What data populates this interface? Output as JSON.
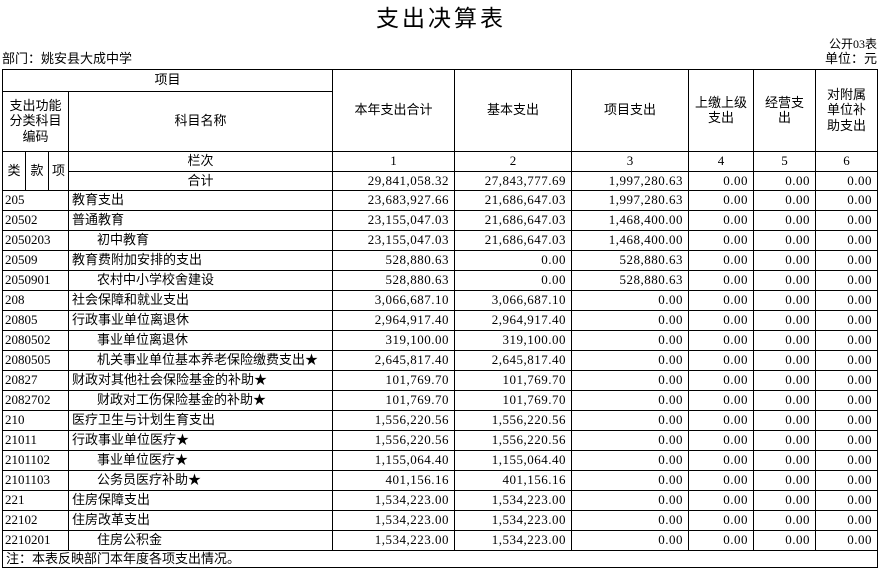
{
  "page": {
    "title": "支出决算表",
    "form_no": "公开03表",
    "unit": "单位：元",
    "department": "部门：姚安县大成中学",
    "note": "注：本表反映部门本年度各项支出情况。"
  },
  "table": {
    "header": {
      "project": "项目",
      "code_header": "支出功能分类科目编码",
      "subject_name": "科目名称",
      "code_cols": [
        "类",
        "款",
        "项"
      ],
      "lanci": "栏次",
      "value_cols": [
        "本年支出合计",
        "基本支出",
        "项目支出",
        "上缴上级支出",
        "经营支出",
        "对附属单位补助支出"
      ],
      "col_nums": [
        "1",
        "2",
        "3",
        "4",
        "5",
        "6"
      ]
    },
    "total": {
      "label": "合计",
      "values": [
        "29,841,058.32",
        "27,843,777.69",
        "1,997,280.63",
        "0.00",
        "0.00",
        "0.00"
      ]
    },
    "rows": [
      {
        "code": "205",
        "name": "教育支出",
        "indent": false,
        "values": [
          "23,683,927.66",
          "21,686,647.03",
          "1,997,280.63",
          "0.00",
          "0.00",
          "0.00"
        ]
      },
      {
        "code": "20502",
        "name": "普通教育",
        "indent": false,
        "values": [
          "23,155,047.03",
          "21,686,647.03",
          "1,468,400.00",
          "0.00",
          "0.00",
          "0.00"
        ]
      },
      {
        "code": "2050203",
        "name": "初中教育",
        "indent": true,
        "values": [
          "23,155,047.03",
          "21,686,647.03",
          "1,468,400.00",
          "0.00",
          "0.00",
          "0.00"
        ]
      },
      {
        "code": "20509",
        "name": "教育费附加安排的支出",
        "indent": false,
        "values": [
          "528,880.63",
          "0.00",
          "528,880.63",
          "0.00",
          "0.00",
          "0.00"
        ]
      },
      {
        "code": "2050901",
        "name": "农村中小学校舍建设",
        "indent": true,
        "values": [
          "528,880.63",
          "0.00",
          "528,880.63",
          "0.00",
          "0.00",
          "0.00"
        ]
      },
      {
        "code": "208",
        "name": "社会保障和就业支出",
        "indent": false,
        "values": [
          "3,066,687.10",
          "3,066,687.10",
          "0.00",
          "0.00",
          "0.00",
          "0.00"
        ]
      },
      {
        "code": "20805",
        "name": "行政事业单位离退休",
        "indent": false,
        "values": [
          "2,964,917.40",
          "2,964,917.40",
          "0.00",
          "0.00",
          "0.00",
          "0.00"
        ]
      },
      {
        "code": "2080502",
        "name": "事业单位离退休",
        "indent": true,
        "values": [
          "319,100.00",
          "319,100.00",
          "0.00",
          "0.00",
          "0.00",
          "0.00"
        ]
      },
      {
        "code": "2080505",
        "name": "机关事业单位基本养老保险缴费支出★",
        "indent": true,
        "values": [
          "2,645,817.40",
          "2,645,817.40",
          "0.00",
          "0.00",
          "0.00",
          "0.00"
        ]
      },
      {
        "code": "20827",
        "name": "财政对其他社会保险基金的补助★",
        "indent": false,
        "values": [
          "101,769.70",
          "101,769.70",
          "0.00",
          "0.00",
          "0.00",
          "0.00"
        ]
      },
      {
        "code": "2082702",
        "name": "财政对工伤保险基金的补助★",
        "indent": true,
        "values": [
          "101,769.70",
          "101,769.70",
          "0.00",
          "0.00",
          "0.00",
          "0.00"
        ]
      },
      {
        "code": "210",
        "name": "医疗卫生与计划生育支出",
        "indent": false,
        "values": [
          "1,556,220.56",
          "1,556,220.56",
          "0.00",
          "0.00",
          "0.00",
          "0.00"
        ]
      },
      {
        "code": "21011",
        "name": "行政事业单位医疗★",
        "indent": false,
        "values": [
          "1,556,220.56",
          "1,556,220.56",
          "0.00",
          "0.00",
          "0.00",
          "0.00"
        ]
      },
      {
        "code": "2101102",
        "name": "事业单位医疗★",
        "indent": true,
        "values": [
          "1,155,064.40",
          "1,155,064.40",
          "0.00",
          "0.00",
          "0.00",
          "0.00"
        ]
      },
      {
        "code": "2101103",
        "name": "公务员医疗补助★",
        "indent": true,
        "values": [
          "401,156.16",
          "401,156.16",
          "0.00",
          "0.00",
          "0.00",
          "0.00"
        ]
      },
      {
        "code": "221",
        "name": "住房保障支出",
        "indent": false,
        "values": [
          "1,534,223.00",
          "1,534,223.00",
          "0.00",
          "0.00",
          "0.00",
          "0.00"
        ]
      },
      {
        "code": "22102",
        "name": "住房改革支出",
        "indent": false,
        "values": [
          "1,534,223.00",
          "1,534,223.00",
          "0.00",
          "0.00",
          "0.00",
          "0.00"
        ]
      },
      {
        "code": "2210201",
        "name": "住房公积金",
        "indent": true,
        "values": [
          "1,534,223.00",
          "1,534,223.00",
          "0.00",
          "0.00",
          "0.00",
          "0.00"
        ]
      }
    ]
  }
}
